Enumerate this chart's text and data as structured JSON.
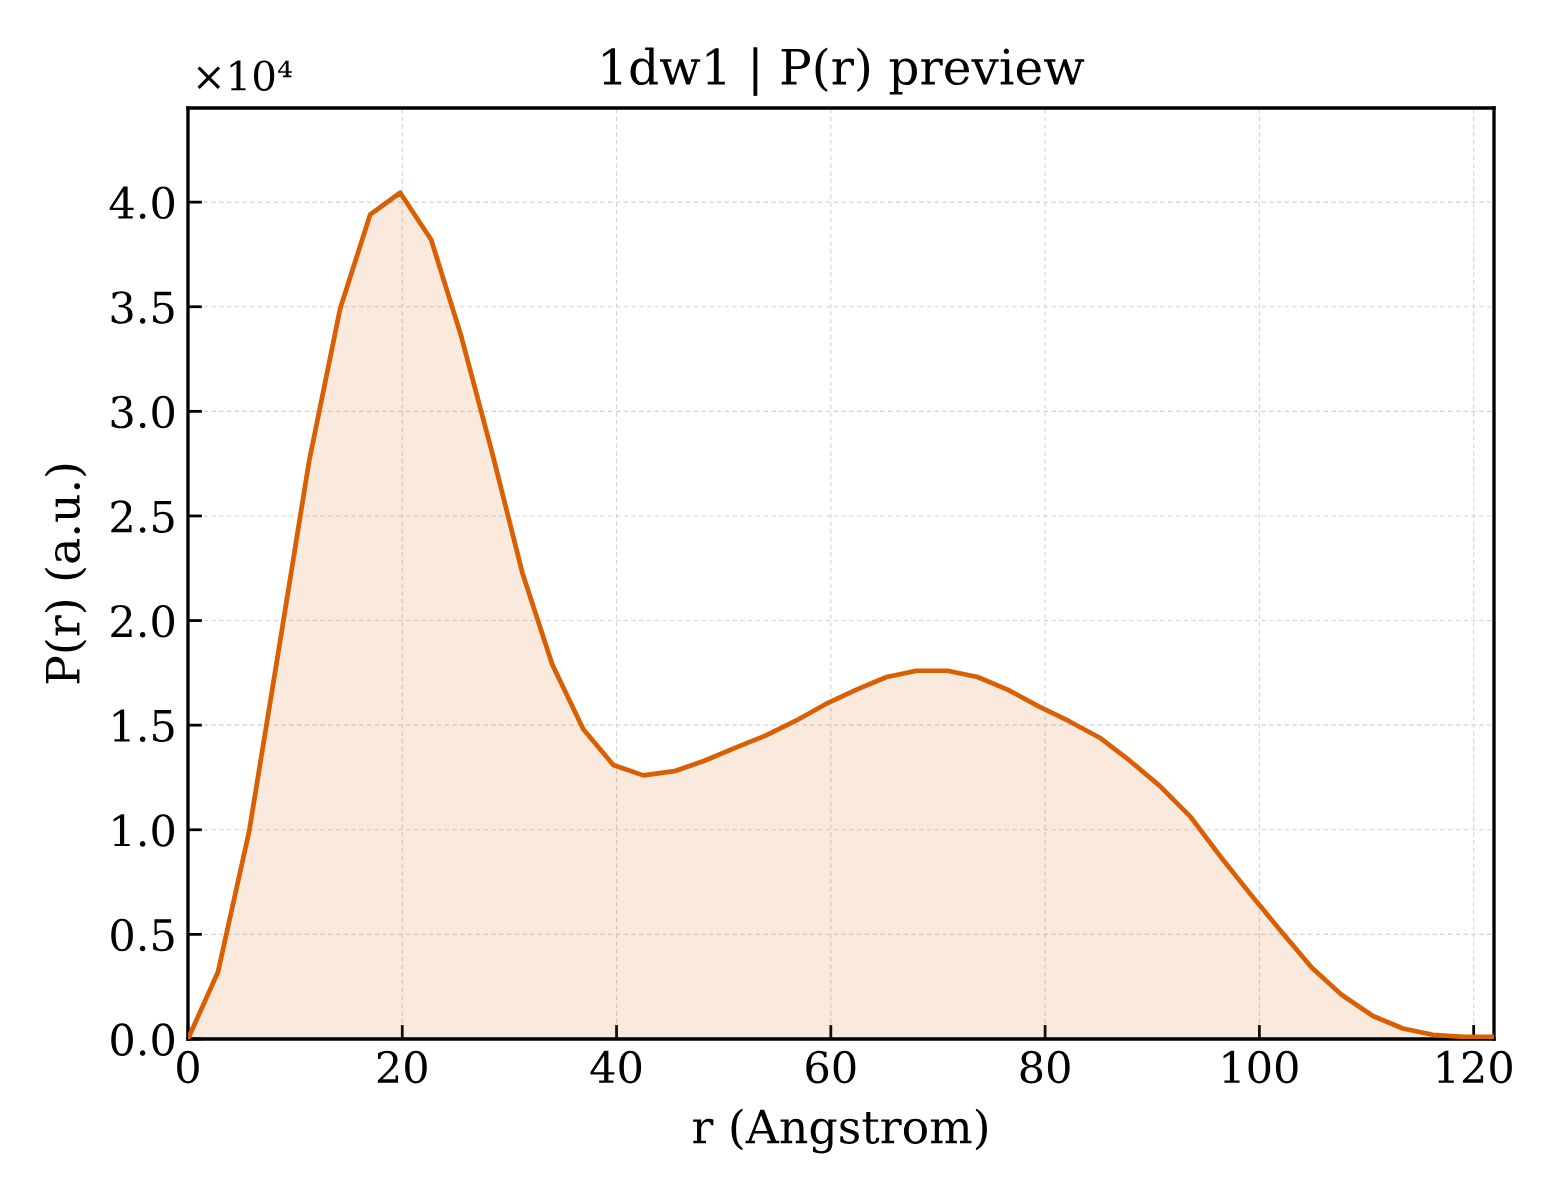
{
  "chart_data": {
    "type": "area",
    "title": "1dw1 | P(r) preview",
    "xlabel": "r (Angstrom)",
    "ylabel": "P(r) (a.u.)",
    "annotations": [
      "×10⁴"
    ],
    "x": [
      0,
      2.8,
      5.7,
      8.5,
      11.3,
      14.2,
      17.0,
      19.8,
      22.7,
      25.5,
      28.4,
      31.2,
      34.0,
      36.9,
      39.7,
      42.5,
      45.4,
      48.2,
      51.0,
      53.9,
      56.7,
      59.5,
      62.4,
      65.2,
      68.0,
      70.9,
      73.7,
      76.5,
      79.4,
      82.2,
      85.1,
      87.9,
      90.7,
      93.6,
      96.4,
      99.2,
      102.1,
      104.9,
      107.7,
      110.6,
      113.4,
      116.2,
      119.1,
      121.9
    ],
    "series": [
      {
        "color": "#d95f02",
        "values": [
          0,
          0.32,
          0.99,
          1.87,
          2.76,
          3.49,
          3.94,
          4.045,
          3.82,
          3.36,
          2.8,
          2.23,
          1.79,
          1.48,
          1.31,
          1.26,
          1.28,
          1.33,
          1.39,
          1.45,
          1.52,
          1.6,
          1.67,
          1.73,
          1.76,
          1.76,
          1.73,
          1.67,
          1.59,
          1.52,
          1.44,
          1.33,
          1.21,
          1.06,
          0.87,
          0.69,
          0.51,
          0.34,
          0.21,
          0.11,
          0.05,
          0.02,
          0.01,
          0.01
        ]
      }
    ],
    "xlim": [
      0,
      121.9
    ],
    "ylim": [
      0,
      4.45
    ],
    "xticks": [
      0,
      20,
      40,
      60,
      80,
      100,
      120
    ],
    "yticks": [
      {
        "value": 0,
        "label": "0.0"
      },
      0.5,
      {
        "value": 1,
        "label": "1.0"
      },
      1.5,
      {
        "value": 2,
        "label": "2.0"
      },
      2.5,
      {
        "value": 3,
        "label": "3.0"
      },
      3.5,
      {
        "value": 4,
        "label": "4.0"
      }
    ],
    "grid": true,
    "line_style": "solid"
  }
}
